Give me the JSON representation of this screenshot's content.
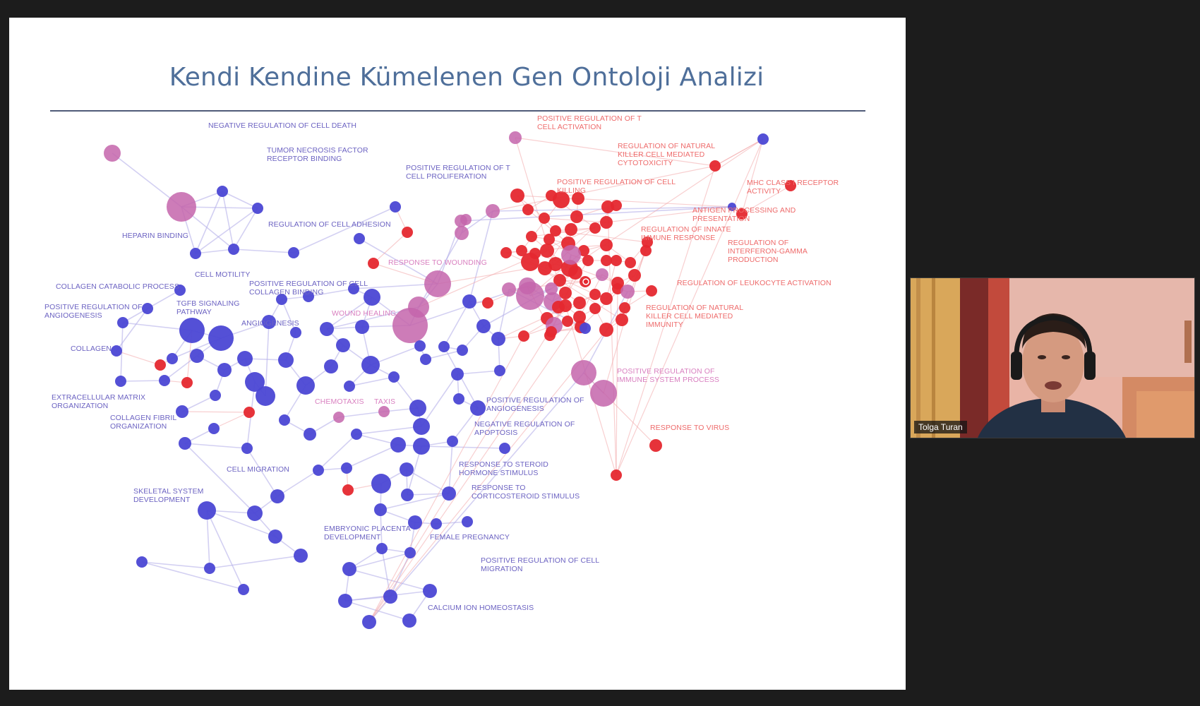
{
  "slide": {
    "title": "Kendi Kendine Kümelenen Gen Ontoloji Analizi"
  },
  "network": {
    "colors": {
      "blue_node": "#4b47d4",
      "red_node": "#e5282f",
      "pink_node": "#c465ab",
      "blue_edge": "#b5b1ea",
      "red_edge": "#f2a7a9"
    },
    "labels": [
      {
        "lines": [
          "NEGATIVE REGULATION OF CELL DEATH"
        ],
        "color": "blue"
      },
      {
        "lines": [
          "TUMOR NECROSIS FACTOR",
          "RECEPTOR BINDING"
        ],
        "color": "blue"
      },
      {
        "lines": [
          "POSITIVE REGULATION OF T",
          "CELL PROLIFERATION"
        ],
        "color": "blue"
      },
      {
        "lines": [
          "POSITIVE REGULATION OF T",
          "CELL ACTIVATION"
        ],
        "color": "red"
      },
      {
        "lines": [
          "REGULATION OF NATURAL",
          "KILLER CELL MEDIATED",
          "CYTOTOXICITY"
        ],
        "color": "red"
      },
      {
        "lines": [
          "POSITIVE REGULATION OF CELL",
          "KILLING"
        ],
        "color": "red"
      },
      {
        "lines": [
          "MHC CLASS I RECEPTOR",
          "ACTIVITY"
        ],
        "color": "red"
      },
      {
        "lines": [
          "ANTIGEN PROCESSING AND",
          "PRESENTATION"
        ],
        "color": "red"
      },
      {
        "lines": [
          "REGULATION OF INNATE",
          "IMMUNE RESPONSE"
        ],
        "color": "red"
      },
      {
        "lines": [
          "REGULATION OF",
          "INTERFERON-GAMMA",
          "PRODUCTION"
        ],
        "color": "red"
      },
      {
        "lines": [
          "REGULATION OF LEUKOCYTE ACTIVATION"
        ],
        "color": "red"
      },
      {
        "lines": [
          "REGULATION OF NATURAL",
          "KILLER CELL MEDIATED",
          "IMMUNITY"
        ],
        "color": "red"
      },
      {
        "lines": [
          "POSITIVE REGULATION OF",
          "IMMUNE SYSTEM PROCESS"
        ],
        "color": "pink"
      },
      {
        "lines": [
          "RESPONSE TO VIRUS"
        ],
        "color": "red"
      },
      {
        "lines": [
          "HEPARIN BINDING"
        ],
        "color": "blue"
      },
      {
        "lines": [
          "REGULATION OF CELL ADHESION"
        ],
        "color": "blue"
      },
      {
        "lines": [
          "RESPONSE TO WOUNDING"
        ],
        "color": "pink"
      },
      {
        "lines": [
          "CELL MOTILITY"
        ],
        "color": "blue"
      },
      {
        "lines": [
          "COLLAGEN CATABOLIC PROCESS"
        ],
        "color": "blue"
      },
      {
        "lines": [
          "POSITIVE REGULATION OF CELL",
          "COLLAGEN BINDING"
        ],
        "color": "blue"
      },
      {
        "lines": [
          "POSITIVE REGULATION OF",
          "ANGIOGENESIS"
        ],
        "color": "blue"
      },
      {
        "lines": [
          "TGFB SIGNALING",
          "PATHWAY"
        ],
        "color": "blue"
      },
      {
        "lines": [
          "WOUND HEALING"
        ],
        "color": "pink"
      },
      {
        "lines": [
          "ANGIOGENESIS"
        ],
        "color": "blue"
      },
      {
        "lines": [
          "COLLAGEN"
        ],
        "color": "blue"
      },
      {
        "lines": [
          "EXTRACELLULAR MATRIX",
          "ORGANIZATION"
        ],
        "color": "blue"
      },
      {
        "lines": [
          "COLLAGEN FIBRIL",
          "ORGANIZATION"
        ],
        "color": "blue"
      },
      {
        "lines": [
          "CHEMOTAXIS"
        ],
        "color": "pink"
      },
      {
        "lines": [
          "TAXIS"
        ],
        "color": "pink"
      },
      {
        "lines": [
          "POSITIVE REGULATION OF",
          "ANGIOGENESIS"
        ],
        "color": "blue"
      },
      {
        "lines": [
          "NEGATIVE REGULATION OF",
          "APOPTOSIS"
        ],
        "color": "blue"
      },
      {
        "lines": [
          "CELL MIGRATION"
        ],
        "color": "blue"
      },
      {
        "lines": [
          "RESPONSE TO STEROID",
          "HORMONE STIMULUS"
        ],
        "color": "blue"
      },
      {
        "lines": [
          "SKELETAL SYSTEM",
          "DEVELOPMENT"
        ],
        "color": "blue"
      },
      {
        "lines": [
          "RESPONSE TO",
          "CORTICOSTEROID STIMULUS"
        ],
        "color": "blue"
      },
      {
        "lines": [
          "EMBRYONIC PLACENTA",
          "DEVELOPMENT"
        ],
        "color": "blue"
      },
      {
        "lines": [
          "FEMALE PREGNANCY"
        ],
        "color": "blue"
      },
      {
        "lines": [
          "POSITIVE REGULATION OF CELL",
          "MIGRATION"
        ],
        "color": "blue"
      },
      {
        "lines": [
          "CALCIUM ION HOMEOSTASIS"
        ],
        "color": "blue"
      }
    ]
  },
  "video": {
    "participant_name": "Tolga Turan",
    "wall_color": "#d8a898",
    "shirt_color": "#1e2a3a"
  }
}
